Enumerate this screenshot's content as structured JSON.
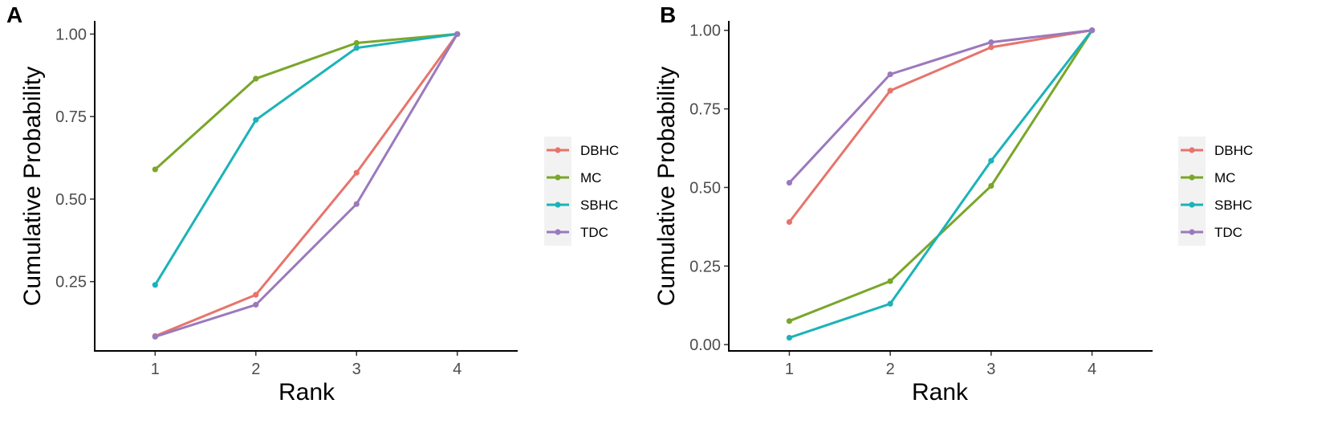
{
  "chart_data": [
    {
      "panel": "A",
      "type": "line",
      "xlabel": "Rank",
      "ylabel": "Cumulative Probability",
      "xlim": [
        0.4,
        4.6
      ],
      "ylim": [
        0.04,
        1.04
      ],
      "x": [
        1,
        2,
        3,
        4
      ],
      "x_tick_labels": [
        "1",
        "2",
        "3",
        "4"
      ],
      "y_ticks": [
        0.25,
        0.5,
        0.75,
        1.0
      ],
      "y_tick_labels": [
        "0.25",
        "0.50",
        "0.75",
        "1.00"
      ],
      "series": [
        {
          "name": "DBHC",
          "color": "#e7746c",
          "values": [
            0.085,
            0.21,
            0.58,
            1.0
          ]
        },
        {
          "name": "MC",
          "color": "#7aa62a",
          "values": [
            0.59,
            0.865,
            0.973,
            1.0
          ]
        },
        {
          "name": "SBHC",
          "color": "#1bb3b8",
          "values": [
            0.24,
            0.74,
            0.958,
            1.0
          ]
        },
        {
          "name": "TDC",
          "color": "#9b79bd",
          "values": [
            0.083,
            0.18,
            0.485,
            1.0
          ]
        }
      ],
      "legend": [
        "DBHC",
        "MC",
        "SBHC",
        "TDC"
      ]
    },
    {
      "panel": "B",
      "type": "line",
      "xlabel": "Rank",
      "ylabel": "Cumulative Probability",
      "xlim": [
        0.4,
        4.6
      ],
      "ylim": [
        -0.02,
        1.03
      ],
      "x": [
        1,
        2,
        3,
        4
      ],
      "x_tick_labels": [
        "1",
        "2",
        "3",
        "4"
      ],
      "y_ticks": [
        0.0,
        0.25,
        0.5,
        0.75,
        1.0
      ],
      "y_tick_labels": [
        "0.00",
        "0.25",
        "0.50",
        "0.75",
        "1.00"
      ],
      "series": [
        {
          "name": "DBHC",
          "color": "#e7746c",
          "values": [
            0.39,
            0.808,
            0.946,
            1.0
          ]
        },
        {
          "name": "MC",
          "color": "#7aa62a",
          "values": [
            0.075,
            0.202,
            0.505,
            1.0
          ]
        },
        {
          "name": "SBHC",
          "color": "#1bb3b8",
          "values": [
            0.022,
            0.13,
            0.585,
            1.0
          ]
        },
        {
          "name": "TDC",
          "color": "#9b79bd",
          "values": [
            0.515,
            0.86,
            0.962,
            1.0
          ]
        }
      ],
      "legend": [
        "DBHC",
        "MC",
        "SBHC",
        "TDC"
      ]
    }
  ]
}
